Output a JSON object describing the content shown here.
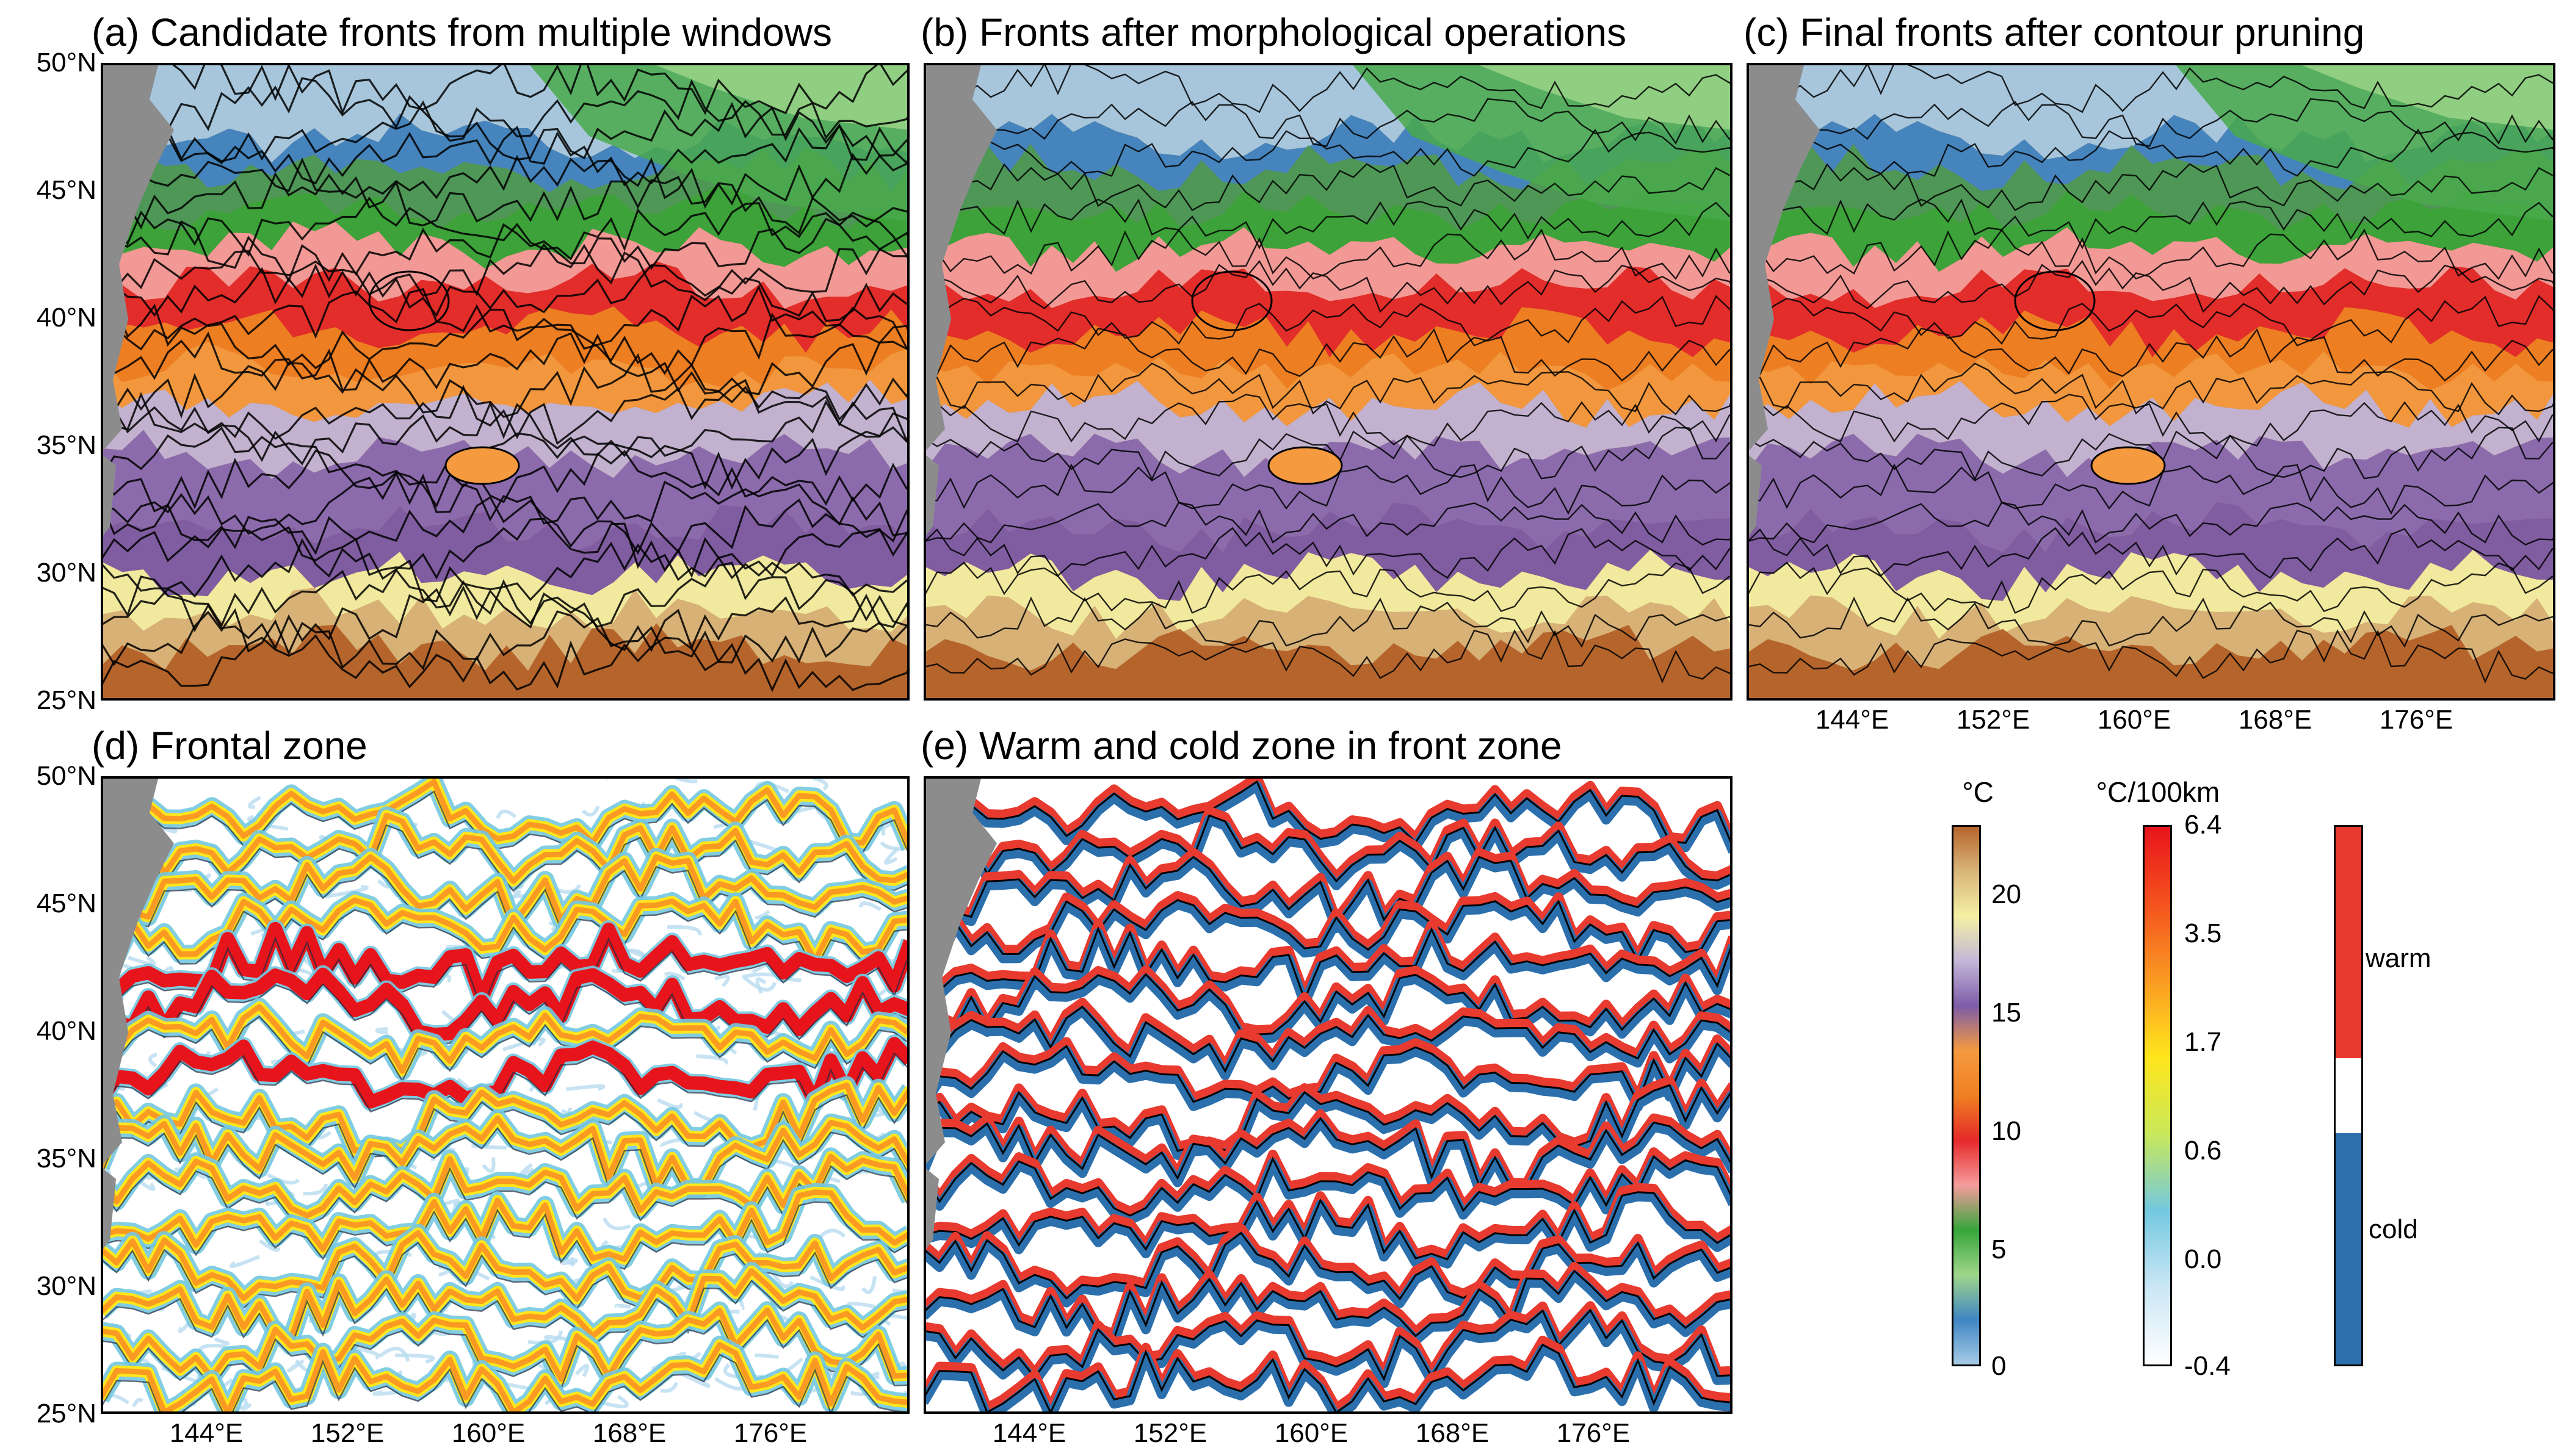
{
  "panels": [
    {
      "id": "a",
      "title": "(a) Candidate fronts from multiple windows",
      "type": "sst_fronts_dense"
    },
    {
      "id": "b",
      "title": "(b) Fronts after morphological operations",
      "type": "sst_fronts"
    },
    {
      "id": "c",
      "title": "(c) Final fronts after contour pruning",
      "type": "sst_fronts"
    },
    {
      "id": "d",
      "title": "(d) Frontal zone",
      "type": "gradient"
    },
    {
      "id": "e",
      "title": "(e) Warm and cold zone in front zone",
      "type": "warm_cold"
    }
  ],
  "lat_ticks": [
    "50°N",
    "45°N",
    "40°N",
    "35°N",
    "30°N",
    "25°N"
  ],
  "lon_ticks": [
    "144°E",
    "152°E",
    "160°E",
    "168°E",
    "176°E"
  ],
  "colorbars": {
    "sst": {
      "unit": "°C",
      "labels": [
        "20",
        "15",
        "10",
        "5",
        "0"
      ],
      "colors": [
        "#b5652b",
        "#d9b57a",
        "#f4f0a4",
        "#c3b6d8",
        "#7d5ca8",
        "#f59a3f",
        "#f07f22",
        "#e52a2a",
        "#f59c9c",
        "#36a53a",
        "#9fd68a",
        "#3f86c4",
        "#a6cbe6"
      ]
    },
    "gradient": {
      "unit": "°C/100km",
      "labels": [
        "6.4",
        "3.5",
        "1.7",
        "0.6",
        "0.0",
        "-0.4"
      ],
      "colors": [
        "#e8141b",
        "#f4521e",
        "#fa9a22",
        "#ffe61c",
        "#c9e85a",
        "#73c8e0",
        "#cbe7f5",
        "#ffffff"
      ]
    },
    "zone": {
      "labels": [
        "warm",
        "cold"
      ],
      "colors": {
        "warm": "#e83a2f",
        "neutral": "#ffffff",
        "cold": "#2b6fad"
      }
    }
  },
  "colors": {
    "land": "#8c8c8c",
    "front_line": "#000000",
    "warm": "#e83a2f",
    "cold": "#2b6fad"
  }
}
